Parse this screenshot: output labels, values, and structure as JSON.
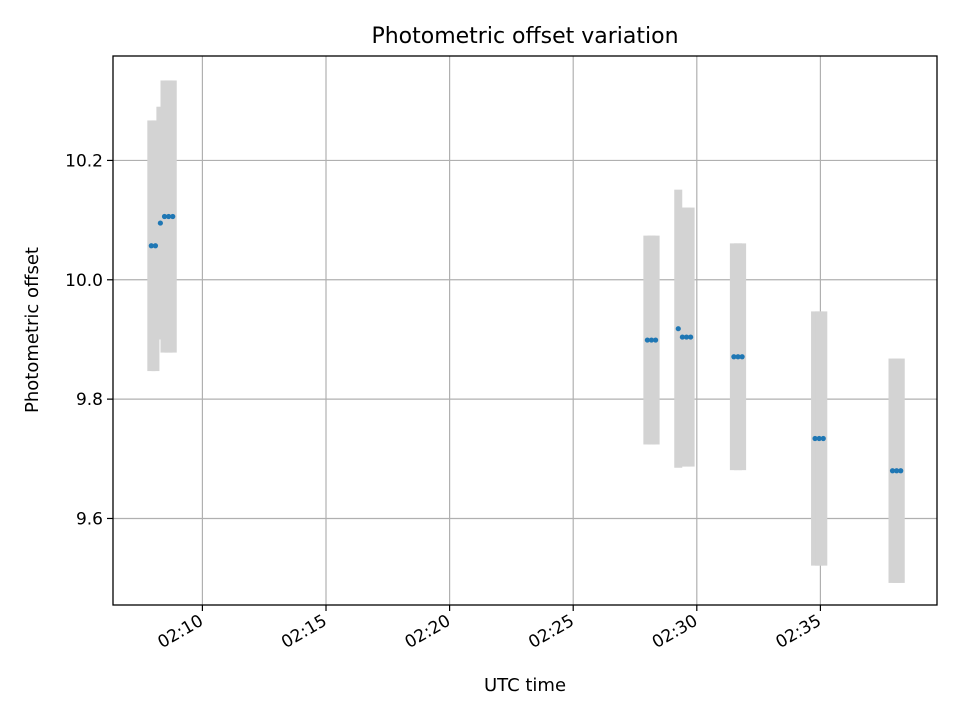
{
  "chart_data": {
    "type": "scatter",
    "title": "Photometric offset variation",
    "xlabel": "UTC time",
    "ylabel": "Photometric offset",
    "x_unit": "UTC time",
    "x_ticks": [
      "02:10",
      "02:15",
      "02:20",
      "02:25",
      "02:30",
      "02:35"
    ],
    "y_ticks": [
      "9.6",
      "9.8",
      "10.0",
      "10.2"
    ],
    "xlim": [
      "02:06:23",
      "02:39:43"
    ],
    "ylim": [
      9.455,
      10.375
    ],
    "grid": true,
    "colors": {
      "points": "#1f77b4",
      "errorbars": "#d3d3d3"
    },
    "points": [
      {
        "x": "02:07:56",
        "y": 10.057,
        "err": 0.21
      },
      {
        "x": "02:08:06",
        "y": 10.057,
        "err": 0.21
      },
      {
        "x": "02:08:18",
        "y": 10.095,
        "err": 0.195
      },
      {
        "x": "02:08:28",
        "y": 10.106,
        "err": 0.228
      },
      {
        "x": "02:08:38",
        "y": 10.106,
        "err": 0.228
      },
      {
        "x": "02:08:48",
        "y": 10.106,
        "err": 0.228
      },
      {
        "x": "02:28:00",
        "y": 9.899,
        "err": 0.175
      },
      {
        "x": "02:28:10",
        "y": 9.899,
        "err": 0.175
      },
      {
        "x": "02:28:20",
        "y": 9.899,
        "err": 0.175
      },
      {
        "x": "02:29:15",
        "y": 9.918,
        "err": 0.233
      },
      {
        "x": "02:29:25",
        "y": 9.904,
        "err": 0.217
      },
      {
        "x": "02:29:35",
        "y": 9.904,
        "err": 0.217
      },
      {
        "x": "02:29:45",
        "y": 9.904,
        "err": 0.217
      },
      {
        "x": "02:31:30",
        "y": 9.871,
        "err": 0.19
      },
      {
        "x": "02:31:40",
        "y": 9.871,
        "err": 0.19
      },
      {
        "x": "02:31:50",
        "y": 9.871,
        "err": 0.19
      },
      {
        "x": "02:34:47",
        "y": 9.734,
        "err": 0.213
      },
      {
        "x": "02:34:57",
        "y": 9.734,
        "err": 0.213
      },
      {
        "x": "02:35:07",
        "y": 9.734,
        "err": 0.213
      },
      {
        "x": "02:37:55",
        "y": 9.68,
        "err": 0.188
      },
      {
        "x": "02:38:05",
        "y": 9.68,
        "err": 0.188
      },
      {
        "x": "02:38:15",
        "y": 9.68,
        "err": 0.188
      }
    ]
  }
}
